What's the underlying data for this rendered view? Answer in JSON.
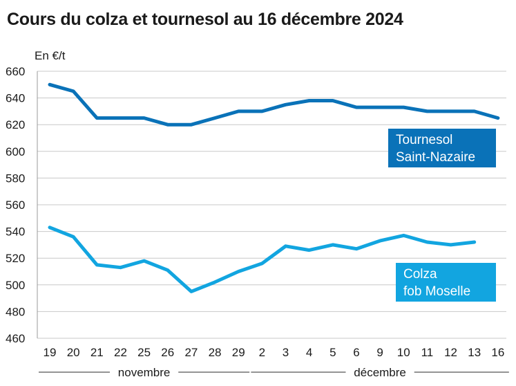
{
  "title": "Cours du colza et tournesol au 16 décembre 2024",
  "chart_data": {
    "type": "line",
    "title": "Cours du colza et tournesol au 16 décembre 2024",
    "ylabel": "En €/t",
    "ylim": [
      460,
      660
    ],
    "yticks": [
      460,
      480,
      500,
      520,
      540,
      560,
      580,
      600,
      620,
      640,
      660
    ],
    "grid": "horizontal",
    "categories": [
      "19",
      "20",
      "21",
      "22",
      "25",
      "26",
      "27",
      "28",
      "29",
      "2",
      "3",
      "4",
      "5",
      "6",
      "9",
      "10",
      "11",
      "12",
      "13",
      "16"
    ],
    "month_groups": [
      {
        "label": "novembre",
        "from": 0,
        "to": 8
      },
      {
        "label": "décembre",
        "from": 9,
        "to": 19
      }
    ],
    "series": [
      {
        "name": "Tournesol Saint-Nazaire",
        "label_lines": [
          "Tournesol",
          "Saint-Nazaire"
        ],
        "color": "#0a72b8",
        "values": [
          650,
          645,
          625,
          625,
          625,
          620,
          620,
          625,
          630,
          630,
          635,
          638,
          638,
          633,
          633,
          633,
          630,
          630,
          630,
          625
        ]
      },
      {
        "name": "Colza fob Moselle",
        "label_lines": [
          "Colza",
          "fob Moselle"
        ],
        "color": "#12a5e0",
        "values": [
          543,
          536,
          515,
          513,
          518,
          511,
          495,
          502,
          510,
          516,
          529,
          526,
          530,
          527,
          533,
          537,
          532,
          530,
          532,
          null
        ]
      }
    ]
  }
}
